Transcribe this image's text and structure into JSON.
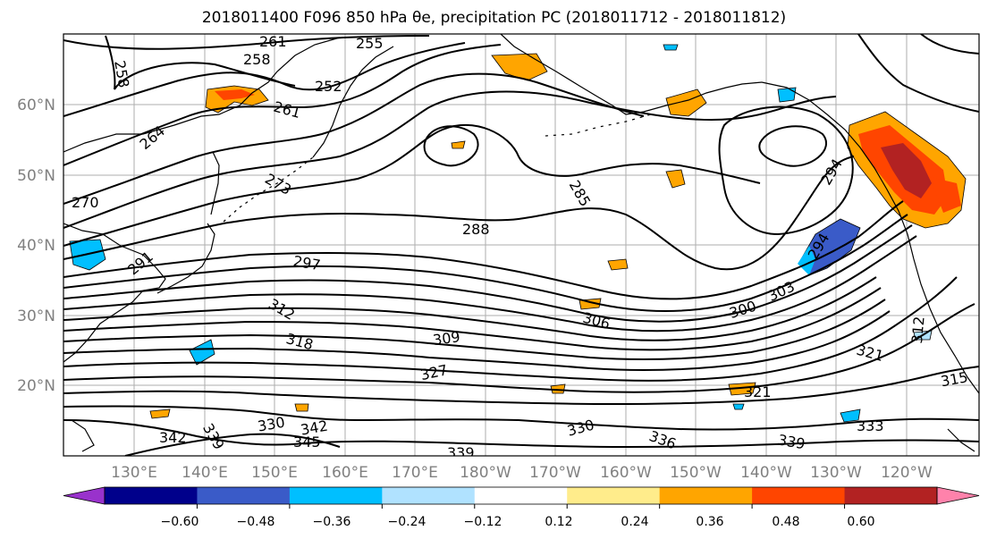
{
  "title": "2018011400 F096 850 hPa θe, precipitation PC (2018011712 - 2018011812)",
  "map": {
    "lon_labels": [
      "130°E",
      "140°E",
      "150°E",
      "160°E",
      "170°E",
      "180°W",
      "170°W",
      "160°W",
      "150°W",
      "140°W",
      "130°W",
      "120°W"
    ],
    "lat_labels": [
      "20°N",
      "30°N",
      "40°N",
      "50°N",
      "60°N"
    ],
    "contour_labels": [
      "261",
      "255",
      "258",
      "252",
      "258",
      "261",
      "264",
      "270",
      "273",
      "285",
      "288",
      "291",
      "294",
      "294",
      "297",
      "300",
      "303",
      "306",
      "309",
      "312",
      "312",
      "315",
      "318",
      "321",
      "321",
      "327",
      "330",
      "330",
      "333",
      "336",
      "339",
      "339",
      "339",
      "342",
      "342",
      "345"
    ]
  },
  "colorbar": {
    "colors": [
      "#9932cc",
      "#00008b",
      "#3a5bc8",
      "#00bfff",
      "#b0e2ff",
      "#ffffff",
      "#ffec8b",
      "#ffa500",
      "#ff4500",
      "#b22222",
      "#ff82ab"
    ],
    "tick_labels": [
      "−0.60",
      "−0.48",
      "−0.36",
      "−0.24",
      "−0.12",
      "0.12",
      "0.24",
      "0.36",
      "0.48",
      "0.60"
    ]
  }
}
